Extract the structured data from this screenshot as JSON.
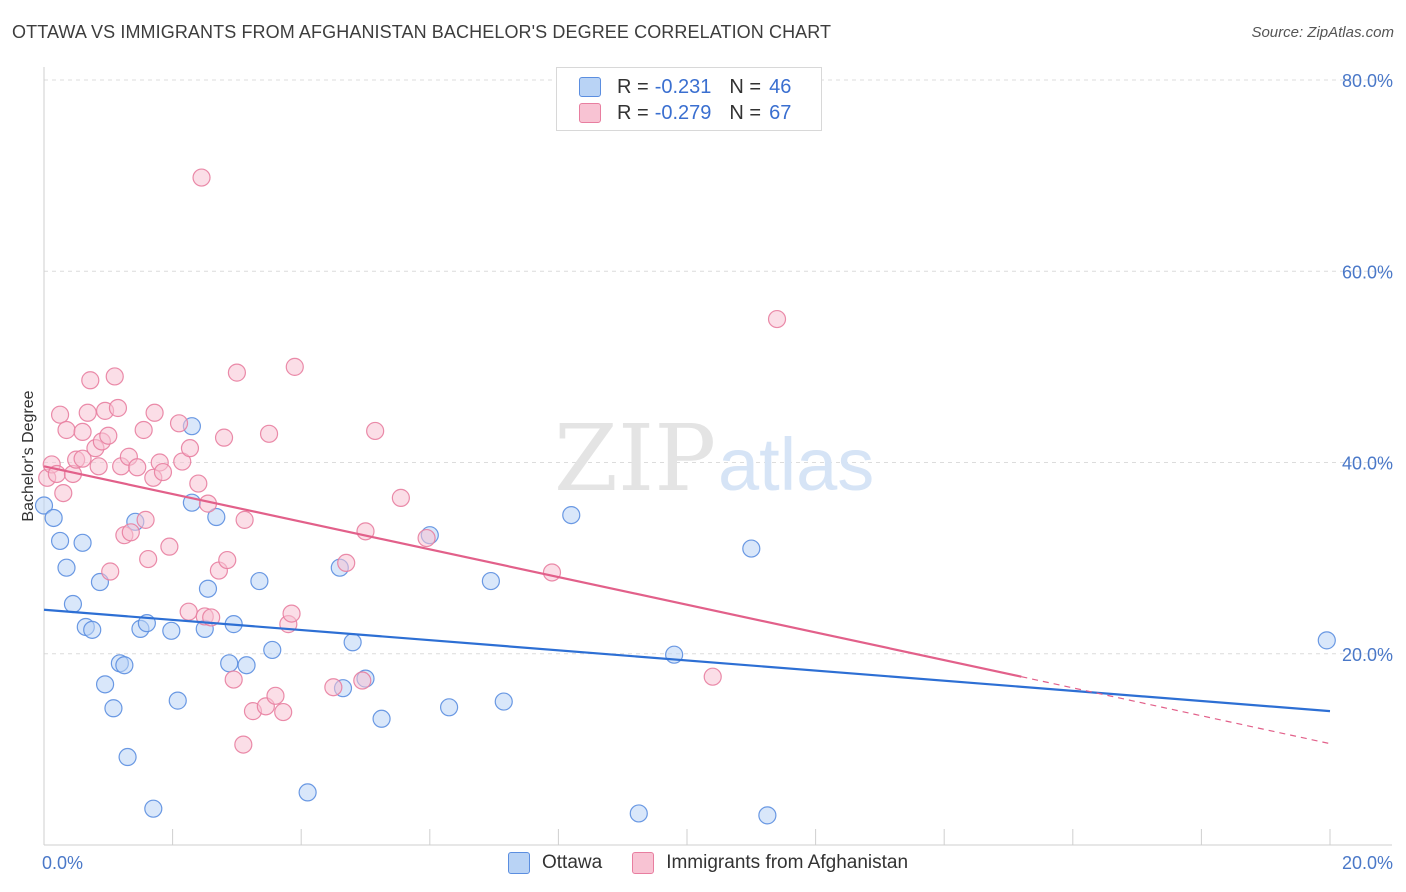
{
  "header": {
    "title": "OTTAWA VS IMMIGRANTS FROM AFGHANISTAN BACHELOR'S DEGREE CORRELATION CHART",
    "source": "Source: ZipAtlas.com"
  },
  "watermark": {
    "zip": "ZIP",
    "atlas": "atlas"
  },
  "legend_top": {
    "rows": [
      {
        "r_label": "R =",
        "r_value": "-0.231",
        "n_label": "N =",
        "n_value": "46"
      },
      {
        "r_label": "R =",
        "r_value": "-0.279",
        "n_label": "N =",
        "n_value": "67"
      }
    ]
  },
  "legend_bottom": {
    "items": [
      "Ottawa",
      "Immigrants from Afghanistan"
    ]
  },
  "colors": {
    "ottawa_fill": "#b9d3f5",
    "ottawa_stroke": "#5b8ee0",
    "ottawa_line": "#2d6fd4",
    "afghan_fill": "#f8c3d3",
    "afghan_stroke": "#e87ea0",
    "afghan_line": "#e2608a",
    "tick_text": "#4a78c8",
    "grid": "#dcdcdc"
  },
  "chart_data": {
    "type": "scatter",
    "title": "OTTAWA VS IMMIGRANTS FROM AFGHANISTAN BACHELOR'S DEGREE CORRELATION CHART",
    "xlabel": "",
    "ylabel": "Bachelor's Degree",
    "xlim": [
      0,
      20
    ],
    "ylim": [
      0,
      80
    ],
    "x_tick_labels": [
      "0.0%",
      "20.0%"
    ],
    "y_ticks": [
      20,
      40,
      60,
      80
    ],
    "y_tick_labels": [
      "20.0%",
      "40.0%",
      "60.0%",
      "80.0%"
    ],
    "grid": true,
    "legend_position": "top-center",
    "series": [
      {
        "name": "Ottawa",
        "r": -0.231,
        "n": 46,
        "trend": {
          "x0": 0,
          "y0": 24.6,
          "x1": 20,
          "y1": 14.0
        },
        "points": [
          [
            0.0,
            35.5
          ],
          [
            0.15,
            34.2
          ],
          [
            0.25,
            31.8
          ],
          [
            0.35,
            29.0
          ],
          [
            0.45,
            25.2
          ],
          [
            0.6,
            31.6
          ],
          [
            0.65,
            22.8
          ],
          [
            0.75,
            22.5
          ],
          [
            0.87,
            27.5
          ],
          [
            0.95,
            16.8
          ],
          [
            1.08,
            14.3
          ],
          [
            1.18,
            19.0
          ],
          [
            1.25,
            18.8
          ],
          [
            1.3,
            9.2
          ],
          [
            1.42,
            33.8
          ],
          [
            1.5,
            22.6
          ],
          [
            1.6,
            23.2
          ],
          [
            1.7,
            3.8
          ],
          [
            1.98,
            22.4
          ],
          [
            2.08,
            15.1
          ],
          [
            2.3,
            43.8
          ],
          [
            2.3,
            35.8
          ],
          [
            2.5,
            22.6
          ],
          [
            2.55,
            26.8
          ],
          [
            2.68,
            34.3
          ],
          [
            2.88,
            19.0
          ],
          [
            2.95,
            23.1
          ],
          [
            3.15,
            18.8
          ],
          [
            3.35,
            27.6
          ],
          [
            3.55,
            20.4
          ],
          [
            4.1,
            5.5
          ],
          [
            4.6,
            29.0
          ],
          [
            4.65,
            16.4
          ],
          [
            4.8,
            21.2
          ],
          [
            5.0,
            17.4
          ],
          [
            5.25,
            13.2
          ],
          [
            6.0,
            32.4
          ],
          [
            6.3,
            14.4
          ],
          [
            6.95,
            27.6
          ],
          [
            7.15,
            15.0
          ],
          [
            8.2,
            34.5
          ],
          [
            9.25,
            3.3
          ],
          [
            9.8,
            19.9
          ],
          [
            11.0,
            31.0
          ],
          [
            11.25,
            3.1
          ],
          [
            19.95,
            21.4
          ]
        ]
      },
      {
        "name": "Immigrants from Afghanistan",
        "r": -0.279,
        "n": 67,
        "trend": {
          "x0": 0,
          "y0": 39.6,
          "x1": 15.2,
          "y1": 17.6
        },
        "trend_dashed": {
          "x0": 15.2,
          "y0": 17.6,
          "x1": 20,
          "y1": 10.6
        },
        "points": [
          [
            0.05,
            38.4
          ],
          [
            0.12,
            39.8
          ],
          [
            0.2,
            38.8
          ],
          [
            0.25,
            45.0
          ],
          [
            0.3,
            36.8
          ],
          [
            0.35,
            43.4
          ],
          [
            0.45,
            38.8
          ],
          [
            0.5,
            40.3
          ],
          [
            0.6,
            40.4
          ],
          [
            0.6,
            43.2
          ],
          [
            0.68,
            45.2
          ],
          [
            0.72,
            48.6
          ],
          [
            0.8,
            41.5
          ],
          [
            0.85,
            39.6
          ],
          [
            0.9,
            42.2
          ],
          [
            0.95,
            45.4
          ],
          [
            1.0,
            42.8
          ],
          [
            1.03,
            28.6
          ],
          [
            1.1,
            49.0
          ],
          [
            1.15,
            45.7
          ],
          [
            1.2,
            39.6
          ],
          [
            1.25,
            32.4
          ],
          [
            1.32,
            40.6
          ],
          [
            1.35,
            32.7
          ],
          [
            1.45,
            39.5
          ],
          [
            1.55,
            43.4
          ],
          [
            1.58,
            34.0
          ],
          [
            1.62,
            29.9
          ],
          [
            1.7,
            38.4
          ],
          [
            1.72,
            45.2
          ],
          [
            1.8,
            40.0
          ],
          [
            1.85,
            39.0
          ],
          [
            1.95,
            31.2
          ],
          [
            2.1,
            44.1
          ],
          [
            2.15,
            40.1
          ],
          [
            2.25,
            24.4
          ],
          [
            2.27,
            41.5
          ],
          [
            2.4,
            37.8
          ],
          [
            2.45,
            69.8
          ],
          [
            2.5,
            23.9
          ],
          [
            2.55,
            35.7
          ],
          [
            2.6,
            23.8
          ],
          [
            2.72,
            28.7
          ],
          [
            2.8,
            42.6
          ],
          [
            2.85,
            29.8
          ],
          [
            2.95,
            17.3
          ],
          [
            3.0,
            49.4
          ],
          [
            3.1,
            10.5
          ],
          [
            3.12,
            34.0
          ],
          [
            3.25,
            14.0
          ],
          [
            3.45,
            14.5
          ],
          [
            3.5,
            43.0
          ],
          [
            3.6,
            15.6
          ],
          [
            3.72,
            13.9
          ],
          [
            3.8,
            23.1
          ],
          [
            3.85,
            24.2
          ],
          [
            3.9,
            50.0
          ],
          [
            4.5,
            16.5
          ],
          [
            4.7,
            29.5
          ],
          [
            4.95,
            17.2
          ],
          [
            5.0,
            32.8
          ],
          [
            5.15,
            43.3
          ],
          [
            5.55,
            36.3
          ],
          [
            5.95,
            32.1
          ],
          [
            7.9,
            28.5
          ],
          [
            10.4,
            17.6
          ],
          [
            11.4,
            55.0
          ]
        ]
      }
    ]
  }
}
